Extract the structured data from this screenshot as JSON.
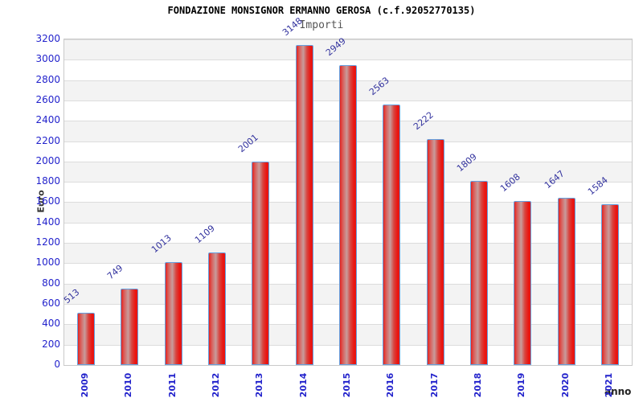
{
  "chart_data": {
    "type": "bar",
    "title": "FONDAZIONE MONSIGNOR ERMANNO GEROSA (c.f.92052770135)",
    "subtitle": "Importi",
    "categories": [
      "2009",
      "2010",
      "2011",
      "2012",
      "2013",
      "2014",
      "2015",
      "2016",
      "2017",
      "2018",
      "2019",
      "2020",
      "2021"
    ],
    "values": [
      513,
      749,
      1013,
      1109,
      2001,
      3148,
      2949,
      2563,
      2222,
      1809,
      1608,
      1647,
      1584
    ],
    "xlabel": "anno",
    "ylabel": "Euro",
    "ylim": [
      0,
      3200
    ],
    "ytick_step": 200,
    "grid": "horizontal gridlines with alternating gray/white bands",
    "legend": "none",
    "value_labels": "above each bar, rotated diagonally",
    "category_labels": "rotated vertical",
    "colors": {
      "bar_fill": "#e82020",
      "bar_fill_highlight": "#c89c9c",
      "bar_border": "#64a0e0",
      "tick_label": "#2323cc",
      "value_label": "#32329e",
      "band_fill": "#f3f3f3",
      "grid_line": "#dcdcdc",
      "plot_border": "#c9c9c9",
      "title_color": "#000000",
      "subtitle_color": "#555555",
      "axis_label_color": "#333333",
      "background": "#ffffff"
    }
  }
}
